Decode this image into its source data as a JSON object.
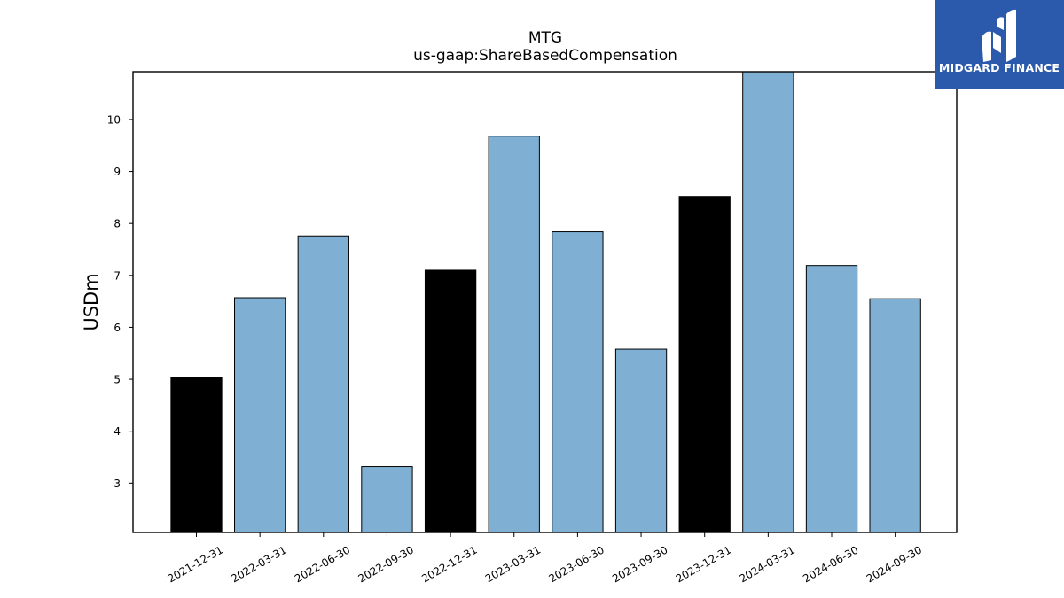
{
  "logo": {
    "text": "MIDGARD FINANCE",
    "background": "#2b5aad"
  },
  "colors": {
    "quarter_bar": "#7fb0d3",
    "year_end_bar": "#000000",
    "bar_edge": "#000000"
  },
  "chart_data": {
    "type": "bar",
    "title": "MTG",
    "subtitle": "us-gaap:ShareBasedCompensation",
    "xlabel": "",
    "ylabel": "USDm",
    "ylim": [
      2.05,
      10.92
    ],
    "yticks": [
      3,
      4,
      5,
      6,
      7,
      8,
      9,
      10
    ],
    "grid": false,
    "categories": [
      "2021-12-31",
      "2022-03-31",
      "2022-06-30",
      "2022-09-30",
      "2022-12-31",
      "2023-03-31",
      "2023-06-30",
      "2023-09-30",
      "2023-12-31",
      "2024-03-31",
      "2024-06-30",
      "2024-09-30"
    ],
    "values": [
      5.03,
      6.57,
      7.76,
      3.32,
      7.1,
      9.68,
      7.84,
      5.58,
      8.52,
      10.92,
      7.19,
      6.55
    ],
    "bar_colors": [
      "#000000",
      "#7fb0d3",
      "#7fb0d3",
      "#7fb0d3",
      "#000000",
      "#7fb0d3",
      "#7fb0d3",
      "#7fb0d3",
      "#000000",
      "#7fb0d3",
      "#7fb0d3",
      "#7fb0d3"
    ]
  }
}
